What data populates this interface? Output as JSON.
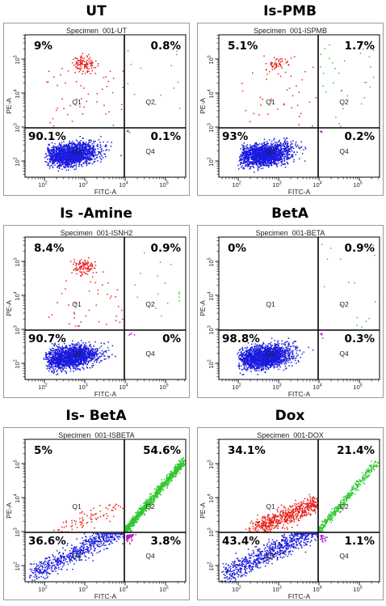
{
  "chart_data": [
    {
      "type": "scatter",
      "title": "UT",
      "specimen": "Specimen_001-UT",
      "xlabel": "FITC-A",
      "ylabel": "PE-A",
      "x_ticks": [
        "10",
        "10",
        "10",
        "10"
      ],
      "x_tick_exp": [
        "2",
        "3",
        "4",
        "5"
      ],
      "y_ticks": [
        "10",
        "10",
        "10",
        "10"
      ],
      "y_tick_exp": [
        "2",
        "3",
        "4",
        "5"
      ],
      "quadrants": [
        {
          "name": "Q1",
          "percent": "9%"
        },
        {
          "name": "Q2",
          "percent": "0.8%"
        },
        {
          "name": "Q3",
          "percent": "90.1%"
        },
        {
          "name": "Q4",
          "percent": "0.1%"
        }
      ],
      "population_colors": {
        "Q1": "#e8201a",
        "Q2": "#2ec72e",
        "Q3": "#1a1adf",
        "Q4": "#b01ac8"
      }
    },
    {
      "type": "scatter",
      "title": "Is-PMB",
      "specimen": "Specimen_001-ISPMB",
      "xlabel": "FITC-A",
      "ylabel": "PE-A",
      "x_ticks": [
        "10",
        "10",
        "10",
        "10"
      ],
      "x_tick_exp": [
        "2",
        "3",
        "4",
        "5"
      ],
      "y_ticks": [
        "10",
        "10",
        "10",
        "10"
      ],
      "y_tick_exp": [
        "2",
        "3",
        "4",
        "5"
      ],
      "quadrants": [
        {
          "name": "Q1",
          "percent": "5.1%"
        },
        {
          "name": "Q2",
          "percent": "1.7%"
        },
        {
          "name": "Q3",
          "percent": "93%"
        },
        {
          "name": "Q4",
          "percent": "0.2%"
        }
      ],
      "population_colors": {
        "Q1": "#e8201a",
        "Q2": "#2ec72e",
        "Q3": "#1a1adf",
        "Q4": "#b01ac8"
      }
    },
    {
      "type": "scatter",
      "title": "Is -Amine",
      "specimen": "Specimen_001-ISNH2",
      "xlabel": "FITC-A",
      "ylabel": "PE-A",
      "x_ticks": [
        "10",
        "10",
        "10",
        "10"
      ],
      "x_tick_exp": [
        "2",
        "3",
        "4",
        "5"
      ],
      "y_ticks": [
        "10",
        "10",
        "10",
        "10"
      ],
      "y_tick_exp": [
        "2",
        "3",
        "4",
        "5"
      ],
      "quadrants": [
        {
          "name": "Q1",
          "percent": "8.4%"
        },
        {
          "name": "Q2",
          "percent": "0.9%"
        },
        {
          "name": "Q3",
          "percent": "90.7%"
        },
        {
          "name": "Q4",
          "percent": "0%"
        }
      ],
      "population_colors": {
        "Q1": "#e8201a",
        "Q2": "#2ec72e",
        "Q3": "#1a1adf",
        "Q4": "#b01ac8"
      }
    },
    {
      "type": "scatter",
      "title": "BetA",
      "specimen": "Specimen_001-BETA",
      "xlabel": "FITC-A",
      "ylabel": "PE-A",
      "x_ticks": [
        "10",
        "10",
        "10",
        "10"
      ],
      "x_tick_exp": [
        "2",
        "3",
        "4",
        "5"
      ],
      "y_ticks": [
        "10",
        "10",
        "10",
        "10"
      ],
      "y_tick_exp": [
        "2",
        "3",
        "4",
        "5"
      ],
      "quadrants": [
        {
          "name": "Q1",
          "percent": "0%"
        },
        {
          "name": "Q2",
          "percent": "0.9%"
        },
        {
          "name": "Q3",
          "percent": "98.8%"
        },
        {
          "name": "Q4",
          "percent": "0.3%"
        }
      ],
      "population_colors": {
        "Q1": "#e8201a",
        "Q2": "#2ec72e",
        "Q3": "#1a1adf",
        "Q4": "#b01ac8"
      }
    },
    {
      "type": "scatter",
      "title": "Is- BetA",
      "specimen": "Specimen_001-ISBETA",
      "xlabel": "FITC-A",
      "ylabel": "PE-A",
      "x_ticks": [
        "10",
        "10",
        "10",
        "10"
      ],
      "x_tick_exp": [
        "2",
        "3",
        "4",
        "5"
      ],
      "y_ticks": [
        "10",
        "10",
        "10",
        "10"
      ],
      "y_tick_exp": [
        "2",
        "3",
        "4",
        "5"
      ],
      "quadrants": [
        {
          "name": "Q1",
          "percent": "5%"
        },
        {
          "name": "Q2",
          "percent": "54.6%"
        },
        {
          "name": "Q3",
          "percent": "36.6%"
        },
        {
          "name": "Q4",
          "percent": "3.8%"
        }
      ],
      "population_colors": {
        "Q1": "#e8201a",
        "Q2": "#2ec72e",
        "Q3": "#1a1adf",
        "Q4": "#b01ac8"
      }
    },
    {
      "type": "scatter",
      "title": "Dox",
      "specimen": "Specimen_001-DOX",
      "xlabel": "FITC-A",
      "ylabel": "PE-A",
      "x_ticks": [
        "10",
        "10",
        "10",
        "10"
      ],
      "x_tick_exp": [
        "2",
        "3",
        "4",
        "5"
      ],
      "y_ticks": [
        "10",
        "10",
        "10",
        "10"
      ],
      "y_tick_exp": [
        "2",
        "3",
        "4",
        "5"
      ],
      "quadrants": [
        {
          "name": "Q1",
          "percent": "34.1%"
        },
        {
          "name": "Q2",
          "percent": "21.4%"
        },
        {
          "name": "Q3",
          "percent": "43.4%"
        },
        {
          "name": "Q4",
          "percent": "1.1%"
        }
      ],
      "population_colors": {
        "Q1": "#e8201a",
        "Q2": "#2ec72e",
        "Q3": "#1a1adf",
        "Q4": "#b01ac8"
      }
    }
  ]
}
